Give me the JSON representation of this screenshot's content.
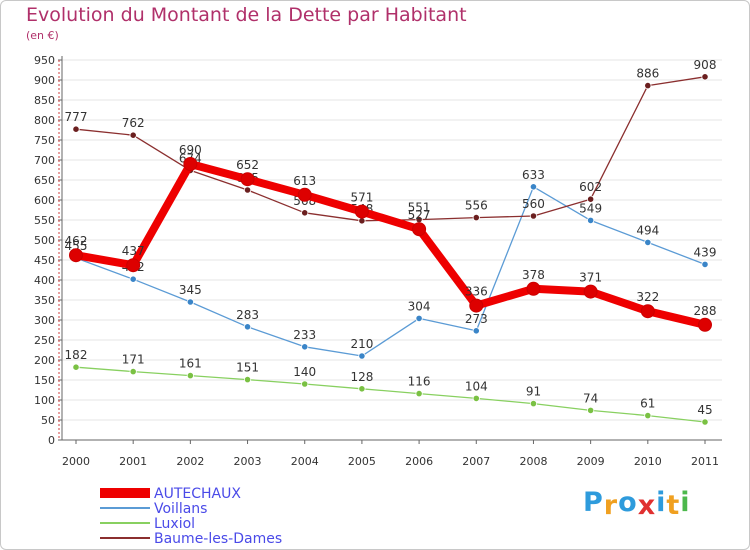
{
  "chart_data": {
    "type": "line",
    "title": "Evolution du Montant de la Dette par Habitant",
    "subtitle": "(en €)",
    "x": [
      "2000",
      "2001",
      "2002",
      "2003",
      "2004",
      "2005",
      "2006",
      "2007",
      "2008",
      "2009",
      "2010",
      "2011"
    ],
    "ylim": [
      0,
      950
    ],
    "yticks": [
      0,
      50,
      100,
      150,
      200,
      250,
      300,
      350,
      400,
      450,
      500,
      550,
      600,
      650,
      700,
      750,
      800,
      850,
      900,
      950
    ],
    "grid": "horizontal",
    "legend_position": "bottom-left",
    "series": [
      {
        "name": "Voillans",
        "color": "#5b9bd5",
        "point_color": "#3a85c8",
        "width": 1.3,
        "values": [
          455,
          402,
          345,
          283,
          233,
          210,
          304,
          273,
          633,
          549,
          494,
          439
        ]
      },
      {
        "name": "Luxiol",
        "color": "#88d060",
        "point_color": "#7ac143",
        "width": 1.3,
        "values": [
          182,
          171,
          161,
          151,
          140,
          128,
          116,
          104,
          91,
          74,
          61,
          45
        ]
      },
      {
        "name": "Baume-les-Dames",
        "color": "#8b2f2f",
        "point_color": "#6b1f1f",
        "width": 1.3,
        "values": [
          777,
          762,
          674,
          625,
          568,
          548,
          551,
          556,
          560,
          602,
          886,
          908
        ]
      },
      {
        "name": "AUTECHAUX",
        "color": "#ee0000",
        "point_color": "#dd0000",
        "width": 8,
        "values": [
          462,
          437,
          690,
          652,
          613,
          571,
          527,
          336,
          378,
          371,
          322,
          288
        ]
      }
    ]
  },
  "branding": {
    "logo_letters": [
      "P",
      "r",
      "o",
      "x",
      "i",
      "t",
      "i"
    ],
    "logo_colors": [
      "#2e9bdc",
      "#f0a020",
      "#2e9bdc",
      "#e03030",
      "#2e9bdc",
      "#f0a020",
      "#4cb84c"
    ]
  }
}
